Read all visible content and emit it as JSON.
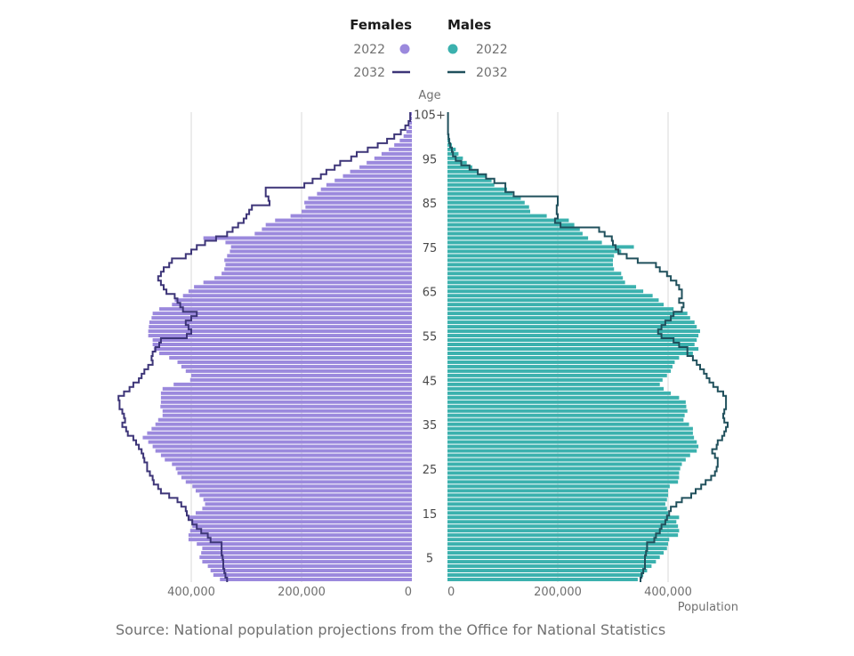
{
  "source": "Source: National population projections from the Office for National Statistics",
  "legend": {
    "females_heading": "Females",
    "males_heading": "Males",
    "label_2022": "2022",
    "label_2032": "2032"
  },
  "colors": {
    "female_bar": "#9b89dd",
    "female_line": "#3d3578",
    "male_bar": "#3bb1ae",
    "male_line": "#20505c",
    "grid": "#d9d9d9",
    "text": "#707070"
  },
  "chart_data": {
    "type": "bar",
    "subtype": "population pyramid",
    "y_axis_label": "Age",
    "x_axis_label": "Population",
    "age_range": [
      0,
      105
    ],
    "age_ticks": [
      "5",
      "15",
      "25",
      "35",
      "45",
      "55",
      "65",
      "75",
      "85",
      "95",
      "105+"
    ],
    "x_range": [
      0,
      400000
    ],
    "x_ticks": [
      "400,000",
      "200,000",
      "0"
    ],
    "male_x_ticks": [
      "0",
      "200,000",
      "400,000"
    ],
    "series": [
      {
        "name": "2022",
        "sex": "Females",
        "style": "bars",
        "values": [
          348000,
          360000,
          365000,
          370000,
          380000,
          385000,
          382000,
          380000,
          390000,
          405000,
          405000,
          402000,
          398000,
          400000,
          405000,
          392000,
          380000,
          375000,
          378000,
          385000,
          392000,
          398000,
          410000,
          418000,
          425000,
          428000,
          435000,
          448000,
          455000,
          465000,
          470000,
          478000,
          488000,
          480000,
          472000,
          465000,
          460000,
          452000,
          452000,
          456000,
          455000,
          455000,
          455000,
          452000,
          432000,
          402000,
          400000,
          410000,
          418000,
          425000,
          440000,
          458000,
          468000,
          470000,
          470000,
          478000,
          478000,
          477000,
          476000,
          472000,
          470000,
          458000,
          435000,
          430000,
          415000,
          405000,
          395000,
          378000,
          358000,
          345000,
          340000,
          338000,
          340000,
          335000,
          330000,
          328000,
          338000,
          378000,
          285000,
          272000,
          265000,
          248000,
          220000,
          200000,
          193000,
          195000,
          188000,
          172000,
          165000,
          155000,
          140000,
          125000,
          112000,
          95000,
          82000,
          68000,
          55000,
          42000,
          32000,
          22000,
          15000,
          10000,
          6000,
          4000,
          3000,
          3000
        ]
      },
      {
        "name": "2032",
        "sex": "Females",
        "style": "step line",
        "values": [
          335000,
          338000,
          340000,
          342000,
          342000,
          343000,
          345000,
          345000,
          345000,
          365000,
          370000,
          382000,
          390000,
          398000,
          405000,
          408000,
          410000,
          418000,
          425000,
          440000,
          455000,
          460000,
          468000,
          470000,
          475000,
          480000,
          480000,
          485000,
          487000,
          490000,
          495000,
          500000,
          505000,
          515000,
          518000,
          525000,
          520000,
          522000,
          525000,
          530000,
          530000,
          532000,
          522000,
          512000,
          505000,
          495000,
          490000,
          485000,
          478000,
          470000,
          472000,
          470000,
          465000,
          458000,
          455000,
          408000,
          400000,
          405000,
          410000,
          400000,
          390000,
          415000,
          420000,
          425000,
          430000,
          445000,
          450000,
          455000,
          460000,
          455000,
          450000,
          440000,
          435000,
          410000,
          400000,
          390000,
          375000,
          355000,
          335000,
          325000,
          315000,
          305000,
          300000,
          295000,
          290000,
          258000,
          260000,
          265000,
          265000,
          195000,
          180000,
          165000,
          155000,
          140000,
          130000,
          110000,
          100000,
          80000,
          62000,
          45000,
          32000,
          20000,
          12000,
          6000,
          3000,
          3000
        ]
      },
      {
        "name": "2022",
        "sex": "Males",
        "style": "bars",
        "values": [
          345000,
          355000,
          362000,
          370000,
          378000,
          385000,
          392000,
          398000,
          400000,
          402000,
          418000,
          420000,
          418000,
          415000,
          420000,
          400000,
          398000,
          395000,
          398000,
          400000,
          400000,
          403000,
          418000,
          420000,
          420000,
          422000,
          425000,
          432000,
          440000,
          452000,
          455000,
          452000,
          447000,
          445000,
          445000,
          438000,
          428000,
          430000,
          435000,
          433000,
          432000,
          420000,
          405000,
          392000,
          385000,
          390000,
          398000,
          405000,
          408000,
          412000,
          420000,
          445000,
          455000,
          448000,
          452000,
          455000,
          458000,
          452000,
          448000,
          440000,
          435000,
          410000,
          392000,
          383000,
          372000,
          355000,
          342000,
          322000,
          318000,
          315000,
          302000,
          300000,
          300000,
          302000,
          315000,
          338000,
          280000,
          255000,
          245000,
          240000,
          230000,
          220000,
          180000,
          150000,
          148000,
          140000,
          133000,
          118000,
          108000,
          85000,
          80000,
          70000,
          55000,
          45000,
          35000,
          28000,
          20000,
          15000,
          8000,
          5000,
          3000,
          2000,
          1000,
          1000,
          1000,
          1000
        ]
      },
      {
        "name": "2032",
        "sex": "Males",
        "style": "step line",
        "values": [
          350000,
          352000,
          355000,
          358000,
          358000,
          358000,
          360000,
          362000,
          362000,
          375000,
          378000,
          385000,
          388000,
          395000,
          398000,
          402000,
          405000,
          415000,
          425000,
          442000,
          450000,
          460000,
          468000,
          478000,
          485000,
          488000,
          490000,
          490000,
          485000,
          480000,
          488000,
          490000,
          498000,
          502000,
          505000,
          508000,
          502000,
          500000,
          502000,
          505000,
          505000,
          505000,
          500000,
          490000,
          482000,
          475000,
          470000,
          465000,
          458000,
          452000,
          445000,
          435000,
          435000,
          420000,
          410000,
          388000,
          382000,
          388000,
          395000,
          405000,
          410000,
          425000,
          428000,
          420000,
          425000,
          425000,
          420000,
          415000,
          405000,
          398000,
          385000,
          378000,
          345000,
          325000,
          310000,
          305000,
          300000,
          298000,
          285000,
          275000,
          205000,
          195000,
          200000,
          198000,
          198000,
          200000,
          200000,
          120000,
          105000,
          105000,
          85000,
          70000,
          55000,
          40000,
          25000,
          15000,
          10000,
          8000,
          5000,
          3000,
          2000,
          1000,
          1000,
          1000,
          1000,
          1000
        ]
      }
    ]
  }
}
